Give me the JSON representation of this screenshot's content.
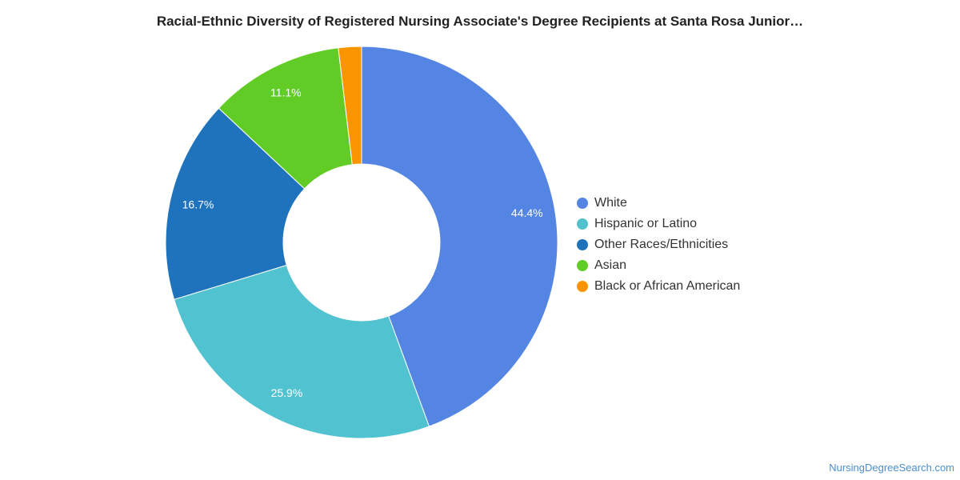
{
  "chart_data": {
    "type": "pie",
    "title": "Racial-Ethnic Diversity of Registered Nursing Associate's Degree Recipients at Santa Rosa Junior…",
    "donut": true,
    "legend_position": "right",
    "slices": [
      {
        "label": "White",
        "value": 44.4,
        "value_label": "44.4%",
        "color": "#5585e3"
      },
      {
        "label": "Hispanic or Latino",
        "value": 25.9,
        "value_label": "25.9%",
        "color": "#51c2d0"
      },
      {
        "label": "Other Races/Ethnicities",
        "value": 16.7,
        "value_label": "16.7%",
        "color": "#1f73bd"
      },
      {
        "label": "Asian",
        "value": 11.1,
        "value_label": "11.1%",
        "color": "#62cc26"
      },
      {
        "label": "Black or African American",
        "value": 1.9,
        "value_label": "",
        "color": "#fa9500"
      }
    ]
  },
  "footer": {
    "source": "NursingDegreeSearch.com"
  }
}
